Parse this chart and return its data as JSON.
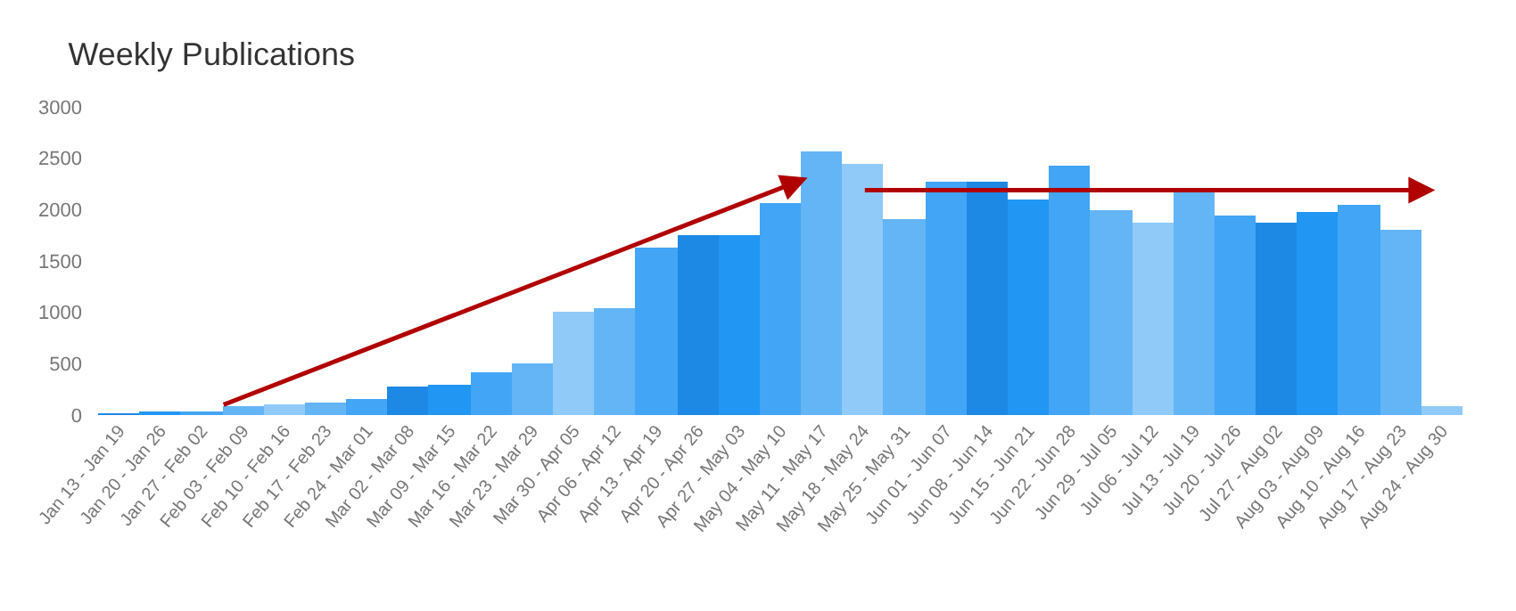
{
  "chart_data": {
    "type": "bar",
    "title": "Weekly Publications",
    "categories": [
      "Jan 13 - Jan 19",
      "Jan 20 - Jan 26",
      "Jan 27 - Feb 02",
      "Feb 03 - Feb 09",
      "Feb 10 - Feb 16",
      "Feb 17 - Feb 23",
      "Feb 24 - Mar 01",
      "Mar 02 - Mar 08",
      "Mar 09 - Mar 15",
      "Mar 16 - Mar 22",
      "Mar 23 - Mar 29",
      "Mar 30 - Apr 05",
      "Apr 06 - Apr 12",
      "Apr 13 - Apr 19",
      "Apr 20 - Apr 26",
      "Apr 27 - May 03",
      "May 04 - May 10",
      "May 11 - May 17",
      "May 18 - May 24",
      "May 25 - May 31",
      "Jun 01 - Jun 07",
      "Jun 08 - Jun 14",
      "Jun 15 - Jun 21",
      "Jun 22 - Jun 28",
      "Jun 29 - Jul 05",
      "Jul 06 - Jul 12",
      "Jul 13 - Jul 19",
      "Jul 20 - Jul 26",
      "Jul 27 - Aug 02",
      "Aug 03 - Aug 09",
      "Aug 10 - Aug 16",
      "Aug 17 - Aug 23",
      "Aug 24 - Aug 30"
    ],
    "values": [
      10,
      20,
      40,
      90,
      100,
      130,
      160,
      270,
      290,
      410,
      500,
      1000,
      1040,
      1630,
      1760,
      1760,
      2070,
      2560,
      2440,
      1900,
      2280,
      2280,
      2100,
      2420,
      1990,
      1870,
      2170,
      1940,
      1870,
      1980,
      2040,
      1800,
      80
    ],
    "colors": [
      "#1e88e5",
      "#2196f3",
      "#42a5f5",
      "#64b5f6",
      "#90caf9",
      "#64b5f6",
      "#42a5f5",
      "#1e88e5",
      "#2196f3",
      "#42a5f5",
      "#64b5f6",
      "#90caf9",
      "#64b5f6",
      "#42a5f5",
      "#1e88e5",
      "#2196f3",
      "#42a5f5",
      "#64b5f6",
      "#90caf9",
      "#64b5f6",
      "#42a5f5",
      "#1e88e5",
      "#2196f3",
      "#42a5f5",
      "#64b5f6",
      "#90caf9",
      "#64b5f6",
      "#42a5f5",
      "#1e88e5",
      "#2196f3",
      "#42a5f5",
      "#64b5f6",
      "#90caf9"
    ],
    "ylim": [
      0,
      3000
    ],
    "yticks": [
      0,
      500,
      1000,
      1500,
      2000,
      2500,
      3000
    ]
  }
}
